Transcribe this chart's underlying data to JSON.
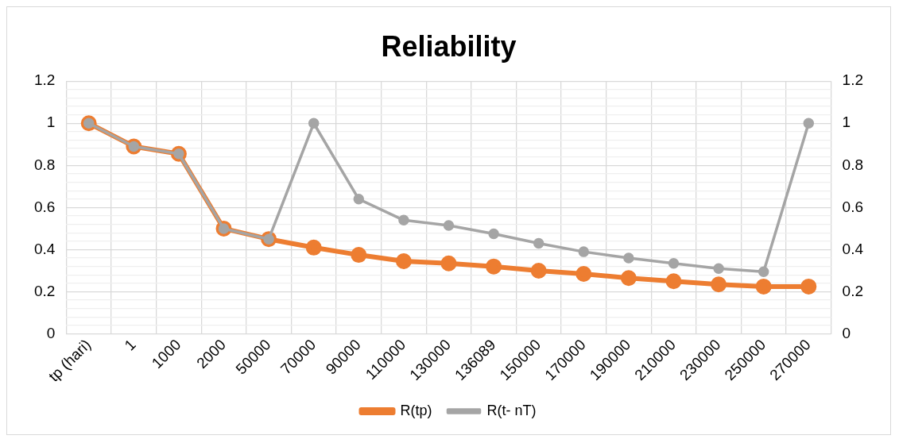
{
  "chart_data": {
    "type": "line",
    "title": "Reliability",
    "categories": [
      "tp (hari)",
      "1",
      "1000",
      "2000",
      "50000",
      "70000",
      "90000",
      "110000",
      "130000",
      "136089",
      "150000",
      "170000",
      "190000",
      "210000",
      "230000",
      "250000",
      "270000"
    ],
    "series": [
      {
        "name": "R(tp)",
        "color": "#ed7d31",
        "values": [
          1,
          0.89,
          0.855,
          0.5,
          0.45,
          0.41,
          0.375,
          0.345,
          0.335,
          0.32,
          0.3,
          0.285,
          0.265,
          0.25,
          0.235,
          0.225,
          0.225
        ]
      },
      {
        "name": "R(t- nT)",
        "color": "#a5a5a5",
        "values": [
          1,
          0.89,
          0.855,
          0.5,
          0.45,
          1,
          0.64,
          0.54,
          0.515,
          0.475,
          0.43,
          0.39,
          0.36,
          0.335,
          0.31,
          0.295,
          1
        ]
      }
    ],
    "ylim": [
      0,
      1.2
    ],
    "yticks": [
      0,
      {
        "value": 0.04,
        "label": null
      },
      {
        "value": 0.08,
        "label": null
      },
      {
        "value": 0.12,
        "label": null
      },
      {
        "value": 0.16,
        "label": null
      },
      0.2,
      {
        "value": 0.24,
        "label": null
      },
      {
        "value": 0.28,
        "label": null
      },
      {
        "value": 0.32,
        "label": null
      },
      {
        "value": 0.36,
        "label": null
      },
      0.4,
      {
        "value": 0.44,
        "label": null
      },
      {
        "value": 0.48,
        "label": null
      },
      {
        "value": 0.52,
        "label": null
      },
      {
        "value": 0.56,
        "label": null
      },
      0.6,
      {
        "value": 0.64,
        "label": null
      },
      {
        "value": 0.68,
        "label": null
      },
      {
        "value": 0.72,
        "label": null
      },
      {
        "value": 0.76,
        "label": null
      },
      0.8,
      {
        "value": 0.84,
        "label": null
      },
      {
        "value": 0.88,
        "label": null
      },
      {
        "value": 0.92,
        "label": null
      },
      {
        "value": 0.96,
        "label": null
      },
      1,
      {
        "value": 1.04,
        "label": null
      },
      {
        "value": 1.08,
        "label": null
      },
      {
        "value": 1.12,
        "label": null
      },
      {
        "value": 1.16,
        "label": null
      },
      1.2
    ],
    "y2lim": [
      0,
      1.2
    ],
    "y2ticks": [
      0,
      0.2,
      0.4,
      0.6,
      0.8,
      1,
      1.2
    ],
    "grid": true,
    "legend": "bottom",
    "marker": "circle",
    "line_style": "solid"
  }
}
